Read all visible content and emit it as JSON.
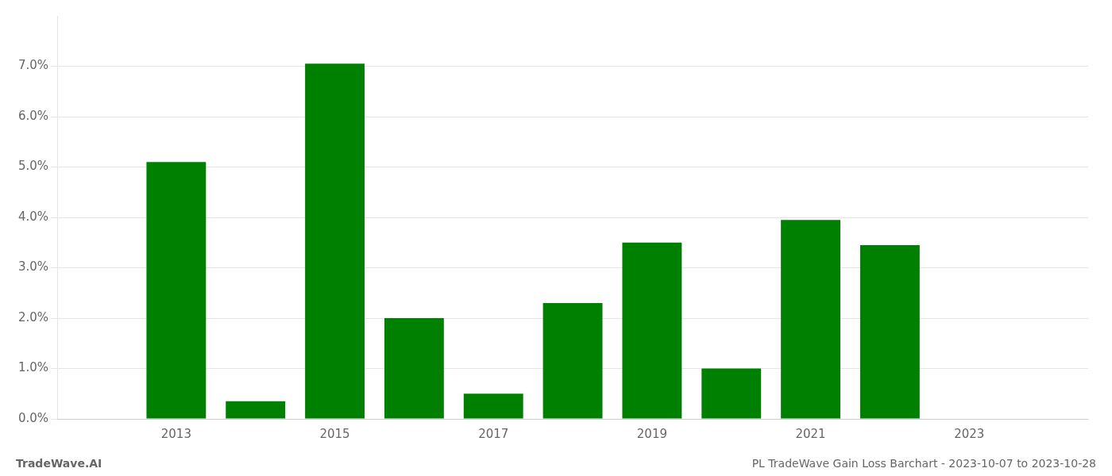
{
  "chart_data": {
    "type": "bar",
    "x": [
      2013,
      2014,
      2015,
      2016,
      2017,
      2018,
      2019,
      2020,
      2021,
      2022,
      2023
    ],
    "values": [
      0.051,
      0.0035,
      0.0705,
      0.02,
      0.005,
      0.023,
      0.035,
      0.01,
      0.0395,
      0.0345,
      0.0
    ],
    "color": "#008000",
    "xlim": [
      2011.5,
      2024.5
    ],
    "xticks": [
      2013,
      2015,
      2017,
      2019,
      2021,
      2023
    ],
    "ylim": [
      0,
      0.08
    ],
    "yticks": [
      {
        "value": 0.0,
        "label": "0.0%"
      },
      {
        "value": 0.01,
        "label": "1.0%"
      },
      {
        "value": 0.02,
        "label": "2.0%"
      },
      {
        "value": 0.03,
        "label": "3.0%"
      },
      {
        "value": 0.04,
        "label": "4.0%"
      },
      {
        "value": 0.05,
        "label": "5.0%"
      },
      {
        "value": 0.06,
        "label": "6.0%"
      },
      {
        "value": 0.07,
        "label": "7.0%"
      }
    ],
    "grid": "y",
    "annotations": [
      "TradeWave.AI",
      "PL TradeWave Gain Loss Barchart - 2023-10-07 to 2023-10-28"
    ]
  }
}
